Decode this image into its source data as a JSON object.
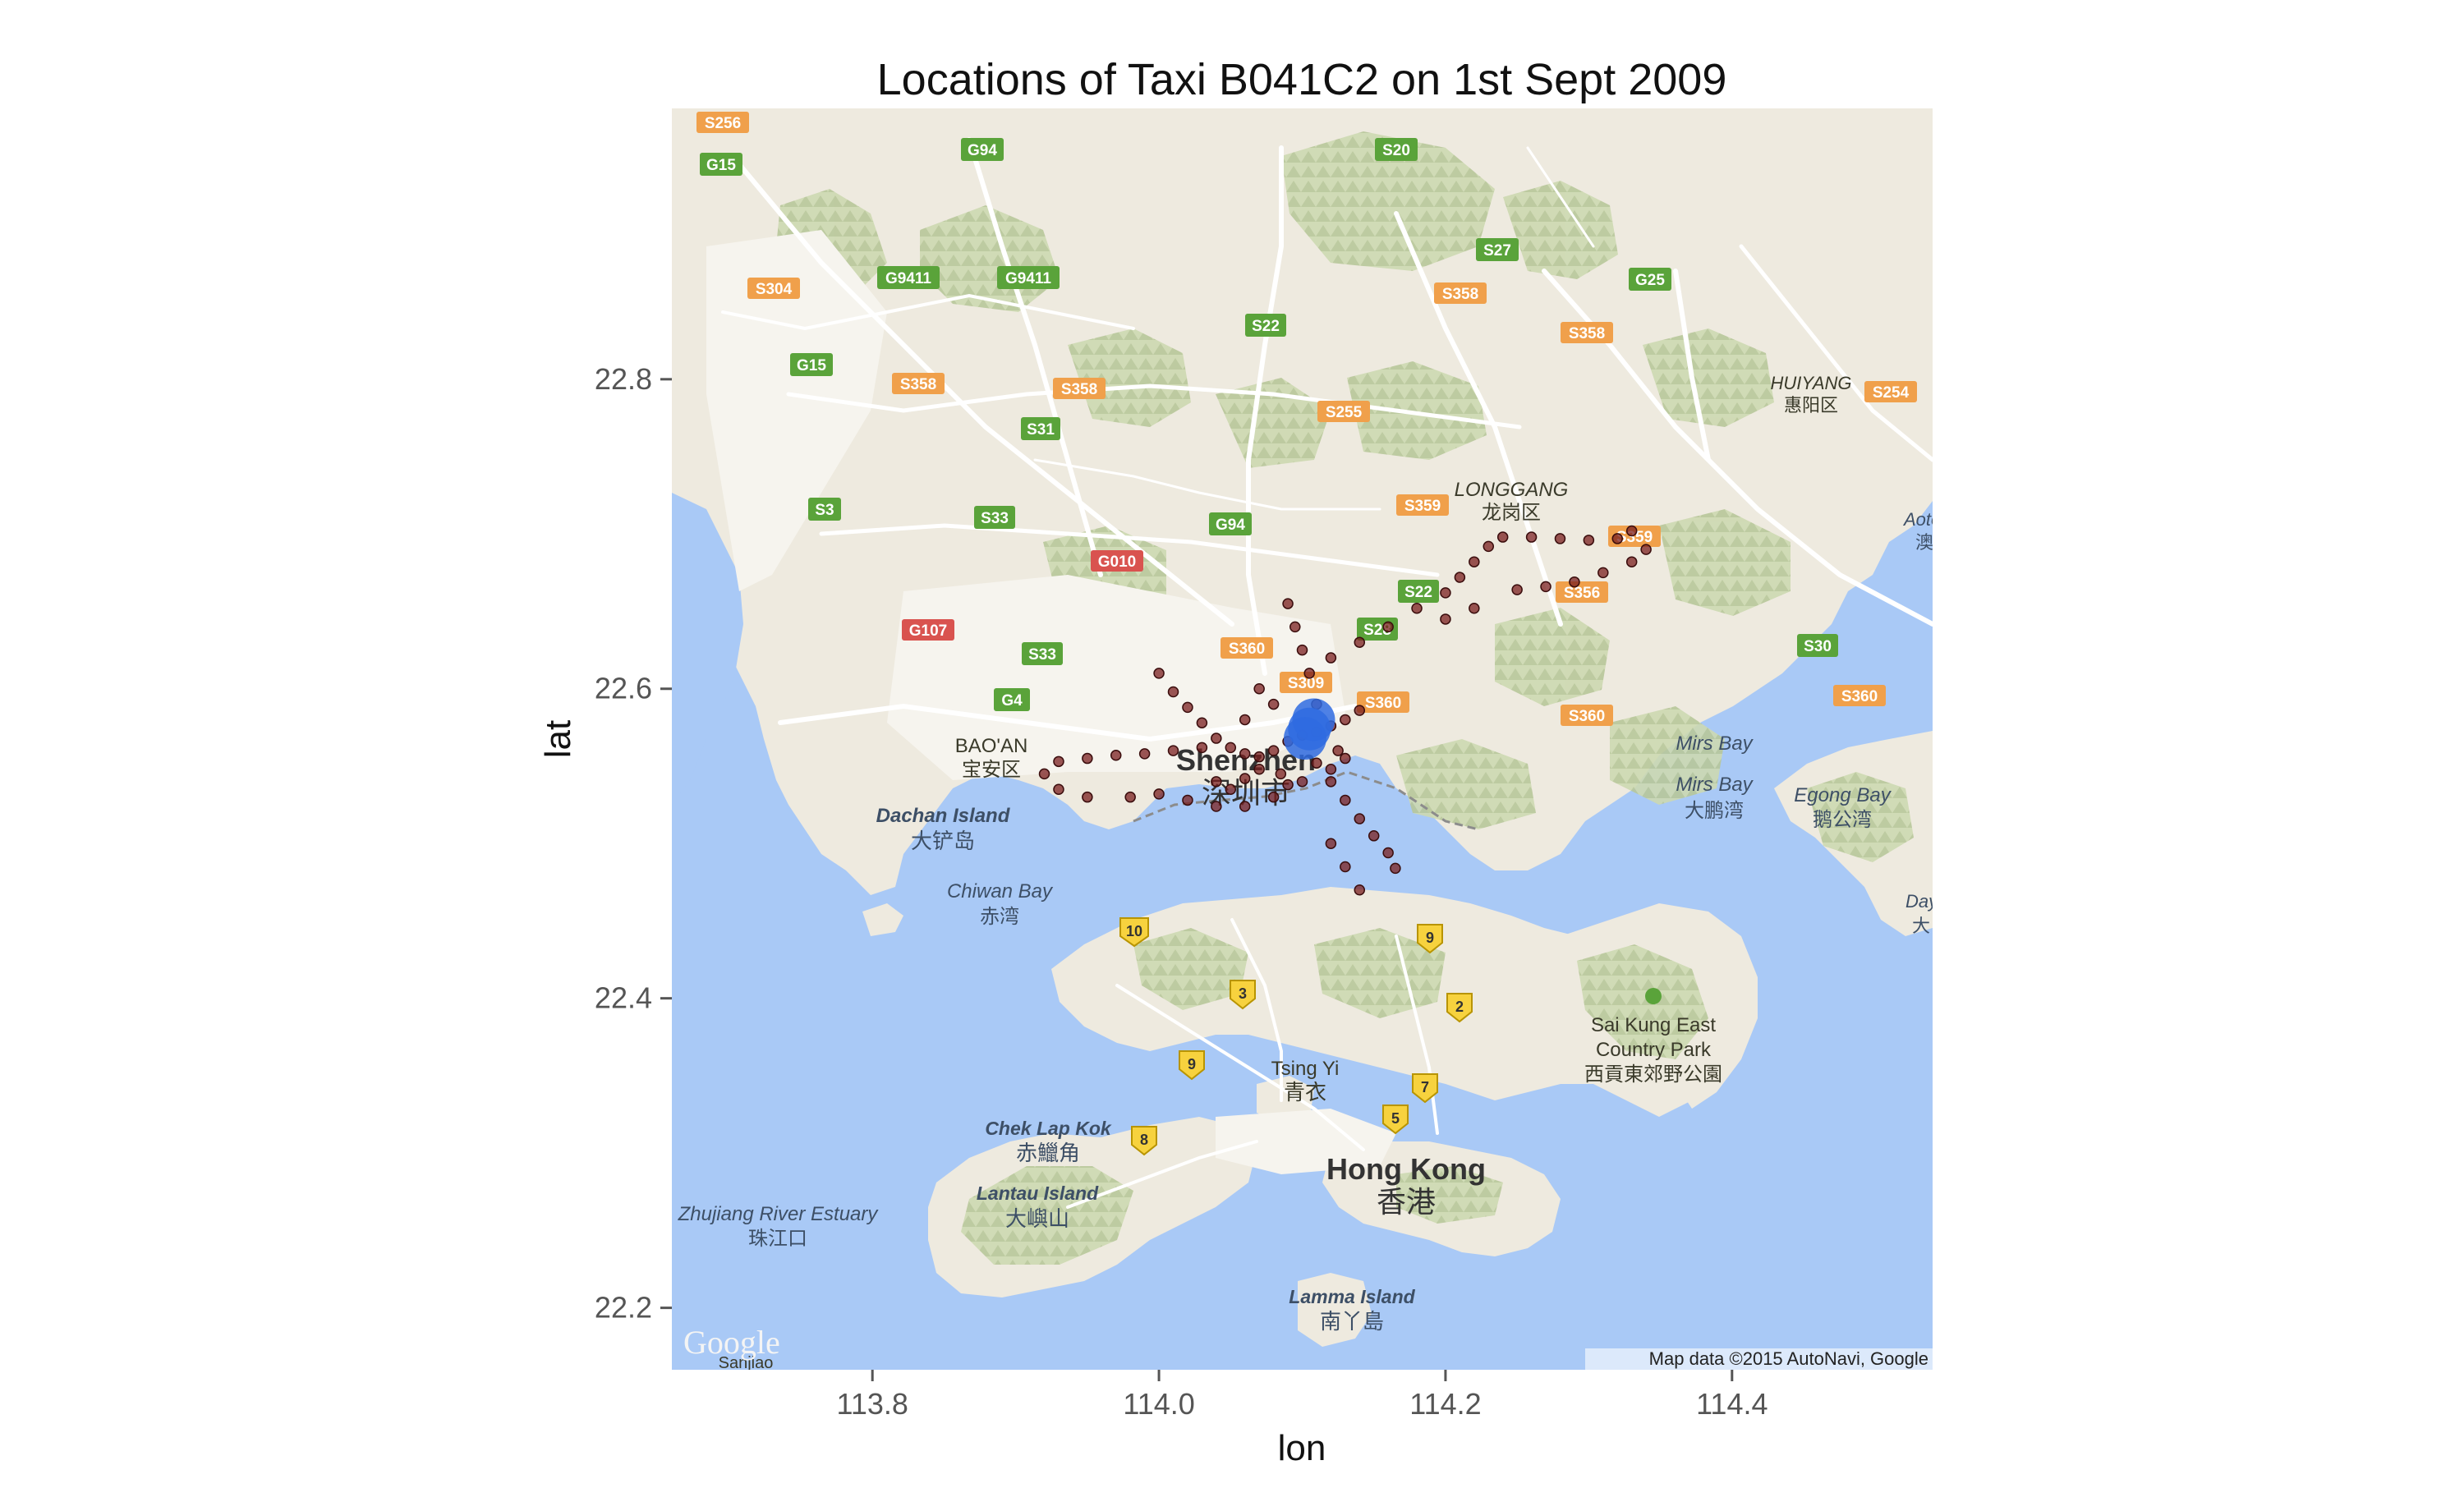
{
  "chart_data": {
    "type": "scatter",
    "title": "Locations of Taxi B041C2 on 1st Sept 2009",
    "xlabel": "lon",
    "ylabel": "lat",
    "xlim": [
      113.66,
      114.54
    ],
    "ylim": [
      22.16,
      22.975
    ],
    "x_ticks": [
      113.8,
      114.0,
      114.2,
      114.4
    ],
    "x_tick_labels": [
      "113.8",
      "114.0",
      "114.2",
      "114.4"
    ],
    "y_ticks": [
      22.2,
      22.4,
      22.6,
      22.8
    ],
    "y_tick_labels": [
      "22.2",
      "22.4",
      "22.6",
      "22.8"
    ],
    "point_color": "#7a1f1f",
    "highlight_color": "#2f6be0",
    "series": [
      {
        "values_note": "",
        "points": [
          [
            114.0,
            22.61
          ],
          [
            114.01,
            22.598
          ],
          [
            114.02,
            22.588
          ],
          [
            114.03,
            22.578
          ],
          [
            114.04,
            22.568
          ],
          [
            114.05,
            22.562
          ],
          [
            114.06,
            22.558
          ],
          [
            114.07,
            22.556
          ],
          [
            114.08,
            22.56
          ],
          [
            114.09,
            22.566
          ],
          [
            114.1,
            22.57
          ],
          [
            114.11,
            22.572
          ],
          [
            114.12,
            22.576
          ],
          [
            114.13,
            22.58
          ],
          [
            114.14,
            22.586
          ],
          [
            113.93,
            22.553
          ],
          [
            113.95,
            22.555
          ],
          [
            113.97,
            22.557
          ],
          [
            113.99,
            22.558
          ],
          [
            114.01,
            22.56
          ],
          [
            114.03,
            22.562
          ],
          [
            113.92,
            22.545
          ],
          [
            113.93,
            22.535
          ],
          [
            113.95,
            22.53
          ],
          [
            113.98,
            22.53
          ],
          [
            114.0,
            22.532
          ],
          [
            114.02,
            22.528
          ],
          [
            114.04,
            22.524
          ],
          [
            114.06,
            22.524
          ],
          [
            114.08,
            22.53
          ],
          [
            114.1,
            22.54
          ],
          [
            114.11,
            22.552
          ],
          [
            114.12,
            22.54
          ],
          [
            114.13,
            22.528
          ],
          [
            114.14,
            22.516
          ],
          [
            114.15,
            22.505
          ],
          [
            114.16,
            22.494
          ],
          [
            114.165,
            22.484
          ],
          [
            114.12,
            22.5
          ],
          [
            114.13,
            22.485
          ],
          [
            114.14,
            22.47
          ],
          [
            114.11,
            22.59
          ],
          [
            114.105,
            22.61
          ],
          [
            114.1,
            22.625
          ],
          [
            114.095,
            22.64
          ],
          [
            114.09,
            22.655
          ],
          [
            114.12,
            22.62
          ],
          [
            114.14,
            22.63
          ],
          [
            114.16,
            22.64
          ],
          [
            114.18,
            22.652
          ],
          [
            114.2,
            22.662
          ],
          [
            114.21,
            22.672
          ],
          [
            114.22,
            22.682
          ],
          [
            114.23,
            22.692
          ],
          [
            114.24,
            22.698
          ],
          [
            114.26,
            22.698
          ],
          [
            114.28,
            22.697
          ],
          [
            114.3,
            22.696
          ],
          [
            114.32,
            22.697
          ],
          [
            114.33,
            22.702
          ],
          [
            114.34,
            22.69
          ],
          [
            114.33,
            22.682
          ],
          [
            114.31,
            22.675
          ],
          [
            114.29,
            22.669
          ],
          [
            114.27,
            22.666
          ],
          [
            114.25,
            22.664
          ],
          [
            114.22,
            22.652
          ],
          [
            114.2,
            22.645
          ],
          [
            114.04,
            22.54
          ],
          [
            114.05,
            22.535
          ],
          [
            114.06,
            22.542
          ],
          [
            114.07,
            22.548
          ],
          [
            114.085,
            22.545
          ],
          [
            114.09,
            22.538
          ],
          [
            114.12,
            22.548
          ],
          [
            114.125,
            22.56
          ],
          [
            114.13,
            22.555
          ],
          [
            114.07,
            22.6
          ],
          [
            114.08,
            22.59
          ],
          [
            114.06,
            22.58
          ]
        ]
      },
      {
        "name": "",
        "kind": "highlight",
        "points": [
          [
            114.105,
            22.574
          ],
          [
            114.102,
            22.568
          ],
          [
            114.108,
            22.58
          ]
        ]
      }
    ]
  },
  "map_labels": {
    "water": [
      {
        "en": "Dachan Island",
        "zh": "大铲岛"
      },
      {
        "en": "Chiwan Bay",
        "zh": "赤湾"
      },
      {
        "en": "Mirs Bay",
        "zh": ""
      },
      {
        "en": "Mirs Bay",
        "zh": "大鹏湾"
      },
      {
        "en": "Egong Bay",
        "zh": "鹅公湾"
      },
      {
        "en": "Zhujiang River Estuary",
        "zh": "珠江口"
      },
      {
        "en": "Chek Lap Kok",
        "zh": "赤鱲角"
      },
      {
        "en": "Lantau Island",
        "zh": "大嶼山"
      },
      {
        "en": "Lamma Island",
        "zh": "南丫島"
      }
    ],
    "districts": [
      {
        "en": "BAO'AN",
        "zh": "宝安区"
      },
      {
        "en": "LONGGANG",
        "zh": "龙岗区"
      },
      {
        "en": "HUIYANG",
        "zh": "惠阳区"
      }
    ],
    "cities": [
      {
        "en": "Shenzhen",
        "zh": "深圳市"
      },
      {
        "en": "Hong Kong",
        "zh": "香港"
      },
      {
        "en": "Tsing Yi",
        "zh": "青衣"
      }
    ],
    "parks": [
      {
        "en1": "Sai Kung East",
        "en2": "Country Park",
        "zh": "西貢東郊野公園"
      }
    ],
    "edge": [
      "Aotou",
      "澳",
      "Day",
      "大",
      "S3"
    ],
    "shields": [
      "S256",
      "G15",
      "G94",
      "S20",
      "S27",
      "G25",
      "S304",
      "G9411",
      "G9411",
      "S358",
      "S22",
      "S358",
      "G15",
      "S358",
      "S358",
      "S255",
      "HUIYANG_S254",
      "S31",
      "S3",
      "S33",
      "G94",
      "S359",
      "S359",
      "G010",
      "S356",
      "G107",
      "S360",
      "S33",
      "S309",
      "S360",
      "G4",
      "S30",
      "S360",
      "S360",
      "S28",
      "S22"
    ],
    "shield_labels": {
      "s256": "S256",
      "g15a": "G15",
      "g94a": "G94",
      "s20": "S20",
      "s27": "S27",
      "g25": "G25",
      "s304": "S304",
      "g9411a": "G9411",
      "g9411b": "G9411",
      "s358a": "S358",
      "s22": "S22",
      "s358b": "S358",
      "g15b": "G15",
      "s358c": "S358",
      "s358d": "S358",
      "s255": "S255",
      "s254": "S254",
      "s31": "S31",
      "s3": "S3",
      "s33a": "S33",
      "g94b": "G94",
      "s359a": "S359",
      "s359b": "S359",
      "g010": "G010",
      "s356": "S356",
      "g107": "G107",
      "s360a": "S360",
      "s33b": "S33",
      "s309": "S309",
      "s360b": "S360",
      "g4": "G4",
      "s30": "S30",
      "s360c": "S360",
      "s360d": "S360",
      "s28": "S28",
      "s22b": "S22"
    },
    "hk_routes": [
      "10",
      "9",
      "3",
      "2",
      "9",
      "7",
      "5",
      "8"
    ],
    "sanjiao": "Sanjiao"
  },
  "attribution": "Map data ©2015 AutoNavi, Google",
  "google_logo": "Google",
  "colors": {
    "water": "#a9c9f6",
    "land": "#eeeadf",
    "hills": "#c9d5ae",
    "urban": "#f3f1ea",
    "road": "#ffffff",
    "expressway_orange": "#f0a04b",
    "expressway_green": "#5aa33a",
    "expressway_red": "#d9534f",
    "hk_route_yellow": "#f7d23e"
  }
}
